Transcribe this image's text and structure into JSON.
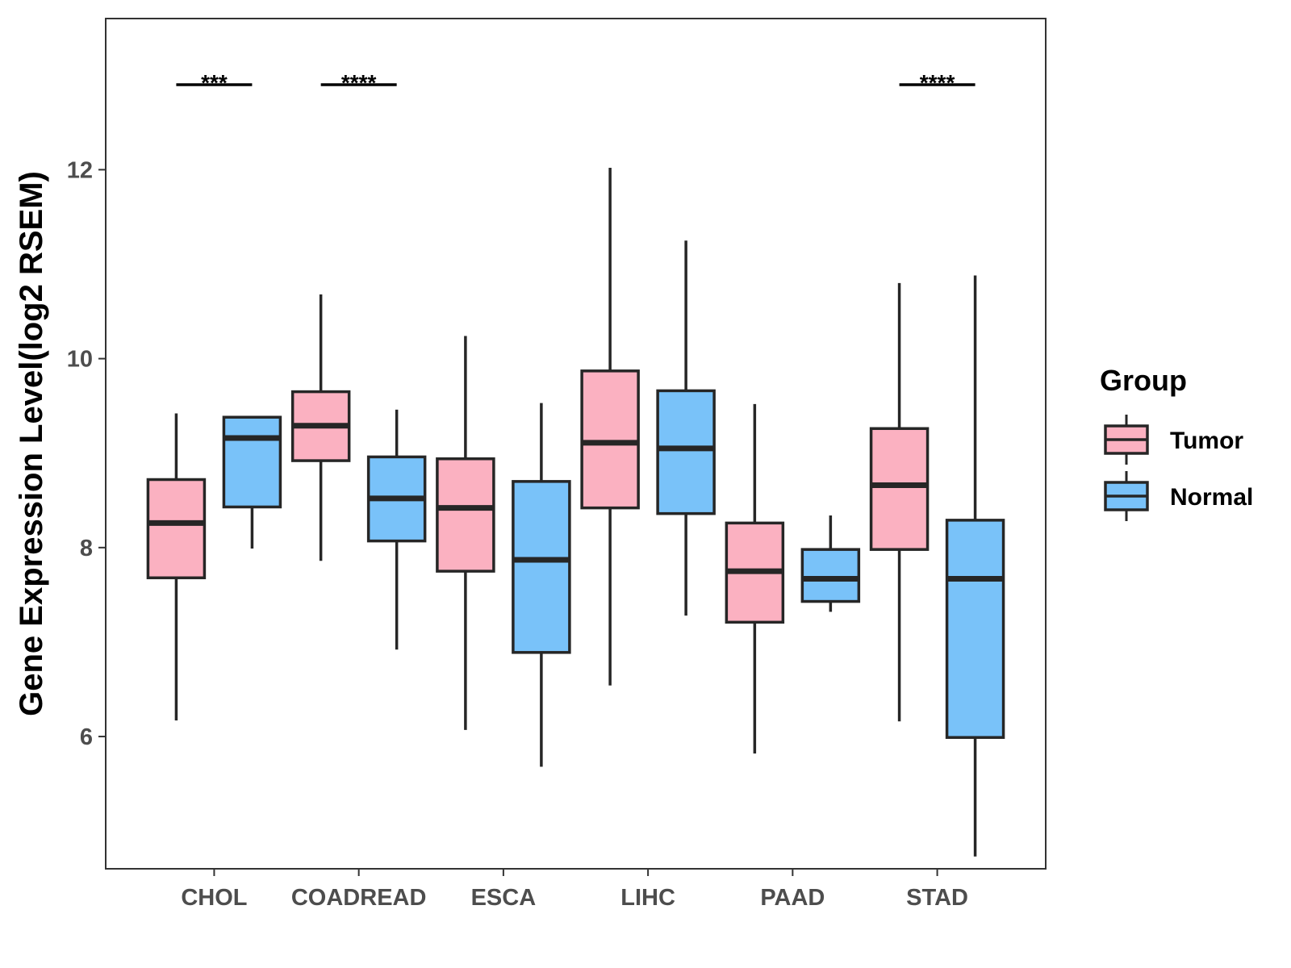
{
  "chart_data": {
    "type": "boxplot",
    "title": "",
    "xlabel": "",
    "ylabel": "Gene Expression Level(log2 RSEM)",
    "ylim": [
      4.6,
      13.6
    ],
    "yticks": [
      6,
      8,
      10,
      12
    ],
    "ytick_labels": [
      "6",
      "8",
      "10",
      "12"
    ],
    "grid": false,
    "categories": [
      "CHOL",
      "COADREAD",
      "ESCA",
      "LIHC",
      "PAAD",
      "STAD"
    ],
    "legend": {
      "title": "Group",
      "position": "right",
      "entries": [
        "Tumor",
        "Normal"
      ]
    },
    "series": [
      {
        "name": "Tumor",
        "color": "#FBB1C1",
        "boxes": [
          {
            "category": "CHOL",
            "whisker_low": 6.17,
            "q1": 7.68,
            "median": 8.26,
            "q3": 8.72,
            "whisker_high": 9.42
          },
          {
            "category": "COADREAD",
            "whisker_low": 7.86,
            "q1": 8.92,
            "median": 9.29,
            "q3": 9.65,
            "whisker_high": 10.68
          },
          {
            "category": "ESCA",
            "whisker_low": 6.07,
            "q1": 7.75,
            "median": 8.42,
            "q3": 8.94,
            "whisker_high": 10.24
          },
          {
            "category": "LIHC",
            "whisker_low": 6.54,
            "q1": 8.42,
            "median": 9.11,
            "q3": 9.87,
            "whisker_high": 12.02
          },
          {
            "category": "PAAD",
            "whisker_low": 5.82,
            "q1": 7.21,
            "median": 7.75,
            "q3": 8.26,
            "whisker_high": 9.52
          },
          {
            "category": "STAD",
            "whisker_low": 6.16,
            "q1": 7.98,
            "median": 8.66,
            "q3": 9.26,
            "whisker_high": 10.8
          }
        ]
      },
      {
        "name": "Normal",
        "color": "#79C2F9",
        "boxes": [
          {
            "category": "CHOL",
            "whisker_low": 7.99,
            "q1": 8.43,
            "median": 9.16,
            "q3": 9.38,
            "whisker_high": 9.38
          },
          {
            "category": "COADREAD",
            "whisker_low": 6.92,
            "q1": 8.07,
            "median": 8.52,
            "q3": 8.96,
            "whisker_high": 9.46
          },
          {
            "category": "ESCA",
            "whisker_low": 5.68,
            "q1": 6.89,
            "median": 7.87,
            "q3": 8.7,
            "whisker_high": 9.53
          },
          {
            "category": "LIHC",
            "whisker_low": 7.28,
            "q1": 8.36,
            "median": 9.05,
            "q3": 9.66,
            "whisker_high": 11.25
          },
          {
            "category": "PAAD",
            "whisker_low": 7.32,
            "q1": 7.43,
            "median": 7.67,
            "q3": 7.98,
            "whisker_high": 8.34
          },
          {
            "category": "STAD",
            "whisker_low": 4.73,
            "q1": 5.99,
            "median": 7.67,
            "q3": 8.29,
            "whisker_high": 10.88
          }
        ]
      }
    ],
    "annotations": [
      {
        "category": "CHOL",
        "label": "***",
        "y": 12.9
      },
      {
        "category": "COADREAD",
        "label": "****",
        "y": 12.9
      },
      {
        "category": "STAD",
        "label": "****",
        "y": 12.9
      }
    ]
  }
}
